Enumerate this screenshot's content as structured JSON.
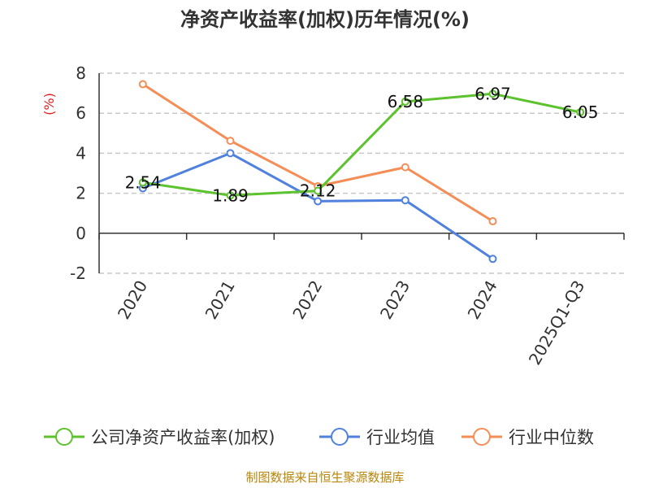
{
  "chart_data": {
    "type": "line",
    "title": "净资产收益率(加权)历年情况(%)",
    "ylabel": "(%)",
    "categories": [
      "2020",
      "2021",
      "2022",
      "2023",
      "2024",
      "2025Q1-Q3"
    ],
    "yticks": [
      "8",
      "6",
      "4",
      "2",
      "0",
      "-2"
    ],
    "ylim": [
      -2,
      8
    ],
    "grid": true,
    "legend_position": "bottom",
    "series": [
      {
        "name": "公司净资产收益率(加权)",
        "color": "#5cc22e",
        "values": [
          2.54,
          1.89,
          2.12,
          6.58,
          6.97,
          6.05
        ],
        "labels": [
          "2.54",
          "1.89",
          "2.12",
          "6.58",
          "6.97",
          "6.05"
        ]
      },
      {
        "name": "行业均值",
        "color": "#4f81dd",
        "values": [
          2.25,
          4.0,
          1.6,
          1.65,
          -1.28,
          null
        ]
      },
      {
        "name": "行业中位数",
        "color": "#f58d57",
        "values": [
          7.45,
          4.62,
          2.35,
          3.3,
          0.6,
          null
        ]
      }
    ]
  },
  "source": "制图数据来自恒生聚源数据库"
}
